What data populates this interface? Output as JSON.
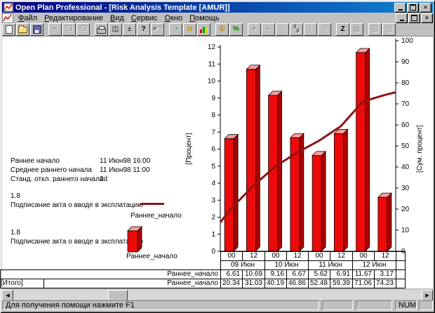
{
  "window": {
    "title": "Open Plan Professional - [Risk Analysis Template [AMUR]]",
    "app_icon": "openplan-chart-icon",
    "document_icon": "risk-chart-document-icon"
  },
  "menu": {
    "items": [
      "Файл",
      "Редактирование",
      "Вид",
      "Сервис",
      "Окно",
      "Помощь"
    ]
  },
  "toolbar": {
    "groups": [
      [
        {
          "name": "new-document-icon",
          "icon": "page"
        },
        {
          "name": "open-file-icon",
          "icon": "folder"
        },
        {
          "name": "save-icon",
          "icon": "floppy"
        }
      ],
      [
        {
          "name": "cut-icon",
          "glyph": "✂",
          "disabled": true
        },
        {
          "name": "copy-icon",
          "glyph": "❐",
          "disabled": true
        },
        {
          "name": "paste-icon",
          "glyph": "❒",
          "disabled": true
        }
      ],
      [
        {
          "name": "print-icon",
          "icon": "printer"
        },
        {
          "name": "print-preview-icon",
          "glyph": "◫"
        },
        {
          "name": "insert-icon",
          "glyph": "±"
        },
        {
          "name": "help-icon",
          "glyph": "?",
          "bold": true
        },
        {
          "name": "context-help-icon",
          "glyph": "☛?",
          "disabled": true
        }
      ],
      [
        {
          "name": "time-analysis-icon",
          "glyph": "◔",
          "color": "#007a7a"
        },
        {
          "name": "resource-analysis-icon",
          "glyph": "✿",
          "color": "#c89a00"
        },
        {
          "name": "risk-analysis-icon",
          "icon": "bars"
        }
      ],
      [
        {
          "name": "cost-icon",
          "glyph": "①",
          "color": "#b8860b",
          "bold": true
        },
        {
          "name": "percent-complete-icon",
          "glyph": "%",
          "color": "#007a00",
          "bold": true
        }
      ],
      [
        {
          "name": "add-icon",
          "glyph": "+",
          "disabled": true,
          "bold": true
        },
        {
          "name": "remove-icon",
          "glyph": "−",
          "disabled": true,
          "bold": true
        },
        {
          "name": "link-icon",
          "glyph": "∷",
          "disabled": true
        },
        {
          "name": "steps-icon",
          "glyph": "▚",
          "disabled": true
        },
        {
          "name": "move-down-icon",
          "glyph": "↓",
          "disabled": true
        },
        {
          "name": "move-up-icon",
          "glyph": "↑",
          "disabled": true
        }
      ],
      [
        {
          "name": "sort-z-icon",
          "glyph": "Z",
          "bold": true
        },
        {
          "name": "grid-view-icon",
          "glyph": "▤",
          "disabled": true
        }
      ],
      [
        {
          "name": "expand-window-icon",
          "glyph": "◱",
          "disabled": true
        },
        {
          "name": "shrink-window-icon",
          "glyph": "◳",
          "disabled": true
        }
      ]
    ]
  },
  "stats": {
    "rows": [
      {
        "label": "Раннее начало",
        "value": "11 Июн98 16:00"
      },
      {
        "label": "Среднее раннего начала",
        "value": "11 Июн98 11:00"
      },
      {
        "label": "Станд. откл.  раннего начала",
        "value": "2d"
      }
    ]
  },
  "legend": {
    "line": {
      "code": "1.8",
      "desc": "Подписание акта о вводе в эксплатацию",
      "series": "Раннее_начало"
    },
    "bar": {
      "code": "1.8",
      "desc": "Подписание акта о вводе в эксплатацию",
      "series": "Раннее_начало"
    }
  },
  "chart_data": {
    "type": "bar",
    "title": "",
    "categories_hours": [
      "00",
      "12",
      "00",
      "12",
      "00",
      "12",
      "00",
      "12"
    ],
    "categories_days": [
      "09 Июн",
      "10 Июн",
      "11 Июн",
      "12 Июн"
    ],
    "left_axis": {
      "title": "[Процент]",
      "min": 0,
      "max": 12,
      "step": 1
    },
    "right_axis": {
      "title": "[Сум. процент]",
      "min": 0,
      "max": 100,
      "step": 10
    },
    "grid": false,
    "series": [
      {
        "name": "Раннее_начало",
        "type": "bar",
        "axis": "left",
        "values": [
          6.61,
          10.69,
          9.16,
          6.67,
          5.62,
          6.91,
          11.67,
          3.17
        ],
        "color": "#ee0a0a",
        "top_color": "#ff9c9c",
        "side_color": "#ad0000"
      },
      {
        "name": "Раннее_начало",
        "type": "line",
        "axis": "right",
        "values": [
          20.34,
          31.03,
          40.19,
          46.86,
          52.48,
          59.39,
          71.06,
          74.23
        ],
        "edge_start": 13.7,
        "edge_end": 75.5,
        "color": "#8e1515"
      }
    ]
  },
  "table": {
    "rows": [
      {
        "left": "",
        "label": "Раннее_начало",
        "values": [
          "6.61",
          "10.69",
          "9.16",
          "6.67",
          "5.62",
          "6.91",
          "11.67",
          "3.17"
        ]
      },
      {
        "left": "[Итого]",
        "label": "Раннее_начало",
        "values": [
          "20.34",
          "31.03",
          "40.19",
          "46.86",
          "52.48",
          "59.39",
          "71.06",
          "74.23"
        ]
      }
    ]
  },
  "statusbar": {
    "help": "Для получения помощи нажмите F1",
    "num": "NUM"
  }
}
